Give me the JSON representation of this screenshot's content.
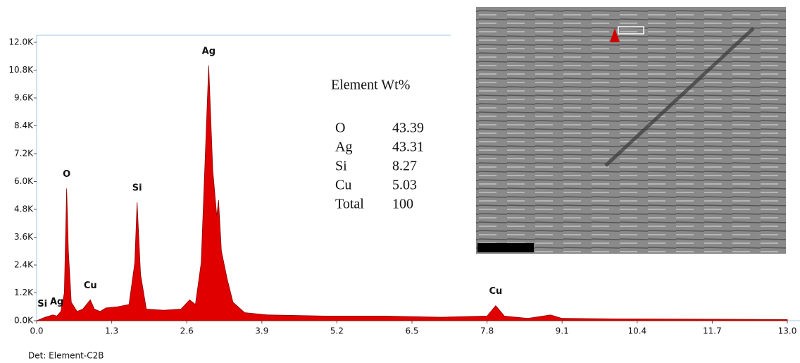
{
  "chart_data": {
    "type": "area",
    "x": [
      0,
      0.15,
      0.28,
      0.35,
      0.42,
      0.48,
      0.52,
      0.55,
      0.6,
      0.7,
      0.8,
      0.93,
      1.0,
      1.1,
      1.2,
      1.4,
      1.6,
      1.7,
      1.74,
      1.8,
      1.9,
      2.2,
      2.5,
      2.65,
      2.75,
      2.85,
      2.98,
      3.05,
      3.12,
      3.15,
      3.2,
      3.3,
      3.4,
      3.6,
      4.0,
      5.0,
      6.0,
      7.0,
      7.8,
      7.95,
      8.1,
      8.5,
      8.9,
      9.1,
      10.0,
      13.0
    ],
    "values": [
      0,
      150,
      250,
      200,
      400,
      1200,
      5700,
      3000,
      800,
      400,
      500,
      900,
      500,
      400,
      550,
      600,
      700,
      2500,
      5100,
      2000,
      500,
      450,
      500,
      900,
      700,
      2500,
      11000,
      6500,
      4500,
      5200,
      3000,
      1800,
      800,
      350,
      250,
      200,
      200,
      150,
      200,
      650,
      200,
      100,
      250,
      100,
      80,
      50
    ],
    "color": "#e00000",
    "xlim": [
      0,
      13
    ],
    "xticks": [
      {
        "value": 0,
        "label": "0.0"
      },
      1.3,
      2.6,
      3.9,
      5.2,
      6.5,
      7.8,
      9.1,
      10.4,
      11.7,
      {
        "value": 13,
        "label": "13.0"
      }
    ],
    "ylim": [
      0,
      12000
    ],
    "yticks": [
      {
        "value": 0,
        "label": "0.0K"
      },
      {
        "value": 1200,
        "label": "1.2K"
      },
      {
        "value": 2400,
        "label": "2.4K"
      },
      {
        "value": 3600,
        "label": "3.6K"
      },
      {
        "value": 4800,
        "label": "4.8K"
      },
      {
        "value": 6000,
        "label": "6.0K"
      },
      {
        "value": 7200,
        "label": "7.2K"
      },
      {
        "value": 8400,
        "label": "8.4K"
      },
      {
        "value": 9600,
        "label": "9.6K"
      },
      {
        "value": 10800,
        "label": "10.8K"
      },
      {
        "value": 12000,
        "label": "12.0K"
      }
    ],
    "annotations": [
      {
        "text": "Si",
        "x": 0.1
      },
      {
        "text": "Ag",
        "x": 0.35
      },
      {
        "text": "O",
        "x": 0.52
      },
      {
        "text": "Cu",
        "x": 0.93
      },
      {
        "text": "Si",
        "x": 1.74
      },
      {
        "text": "Ag",
        "x": 2.98
      },
      {
        "text": "Cu",
        "x": 7.95
      }
    ],
    "detector": "Det: Element-C2B",
    "table": {
      "header": "Element Wt%",
      "rows": [
        [
          "O",
          43.39
        ],
        [
          "Ag",
          43.31
        ],
        [
          "Si",
          8.27
        ],
        [
          "Cu",
          5.03
        ],
        [
          "Total",
          100
        ]
      ]
    }
  }
}
